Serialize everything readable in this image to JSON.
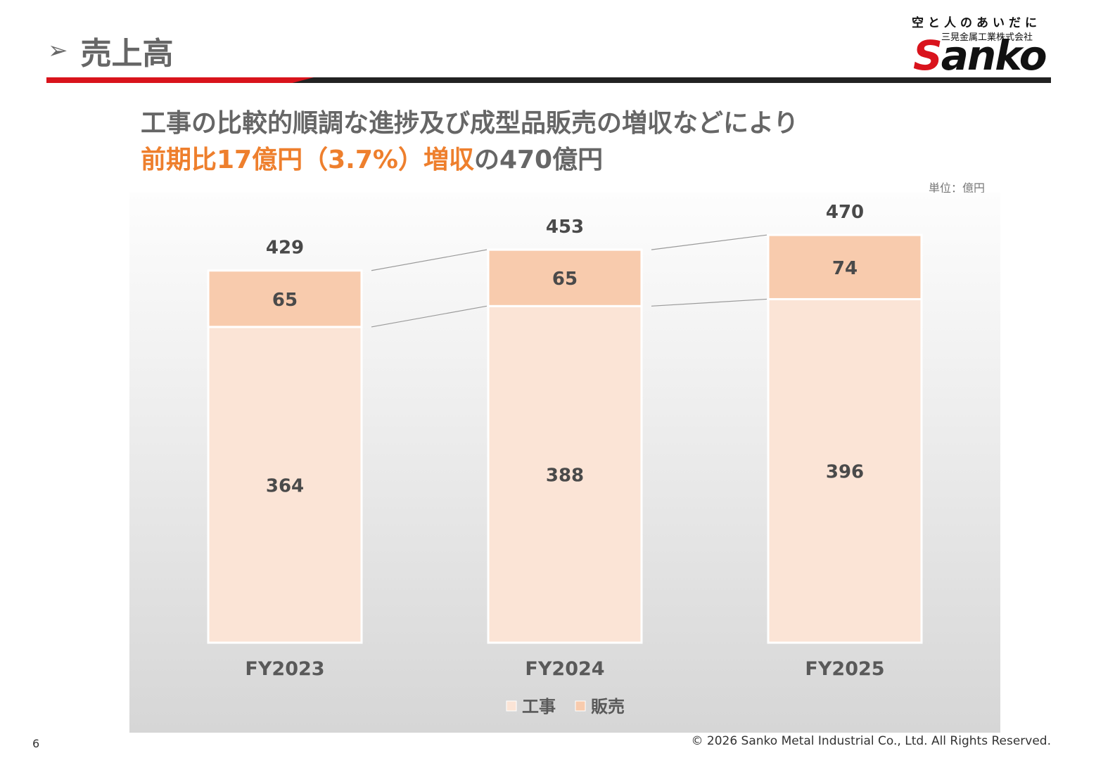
{
  "header": {
    "title": "売上高"
  },
  "logo": {
    "tagline": "空と人のあいだに",
    "company": "三晃金属工業株式会社",
    "wordmark_first": "S",
    "wordmark_rest": "anko"
  },
  "headline": {
    "line1": "工事の比較的順調な進捗及び成型品販売の増収などにより",
    "line2_accent": "前期比17億円（3.7%）増収",
    "line2_rest": "の470億円"
  },
  "unit_label": "単位：億円",
  "chart_data": {
    "type": "bar",
    "stacked": true,
    "categories": [
      "FY2023",
      "FY2024",
      "FY2025"
    ],
    "series": [
      {
        "name": "工事",
        "values": [
          364,
          388,
          396
        ],
        "color": "#fbe4d6"
      },
      {
        "name": "販売",
        "values": [
          65,
          65,
          74
        ],
        "color": "#f8cbad"
      }
    ],
    "totals": [
      429,
      453,
      470
    ],
    "legend": "bottom",
    "grid": false,
    "ylim": [
      0,
      480
    ]
  },
  "footer": {
    "page_number": "6",
    "copyright": "© 2026 Sanko Metal Industrial Co., Ltd. All Rights Reserved."
  }
}
